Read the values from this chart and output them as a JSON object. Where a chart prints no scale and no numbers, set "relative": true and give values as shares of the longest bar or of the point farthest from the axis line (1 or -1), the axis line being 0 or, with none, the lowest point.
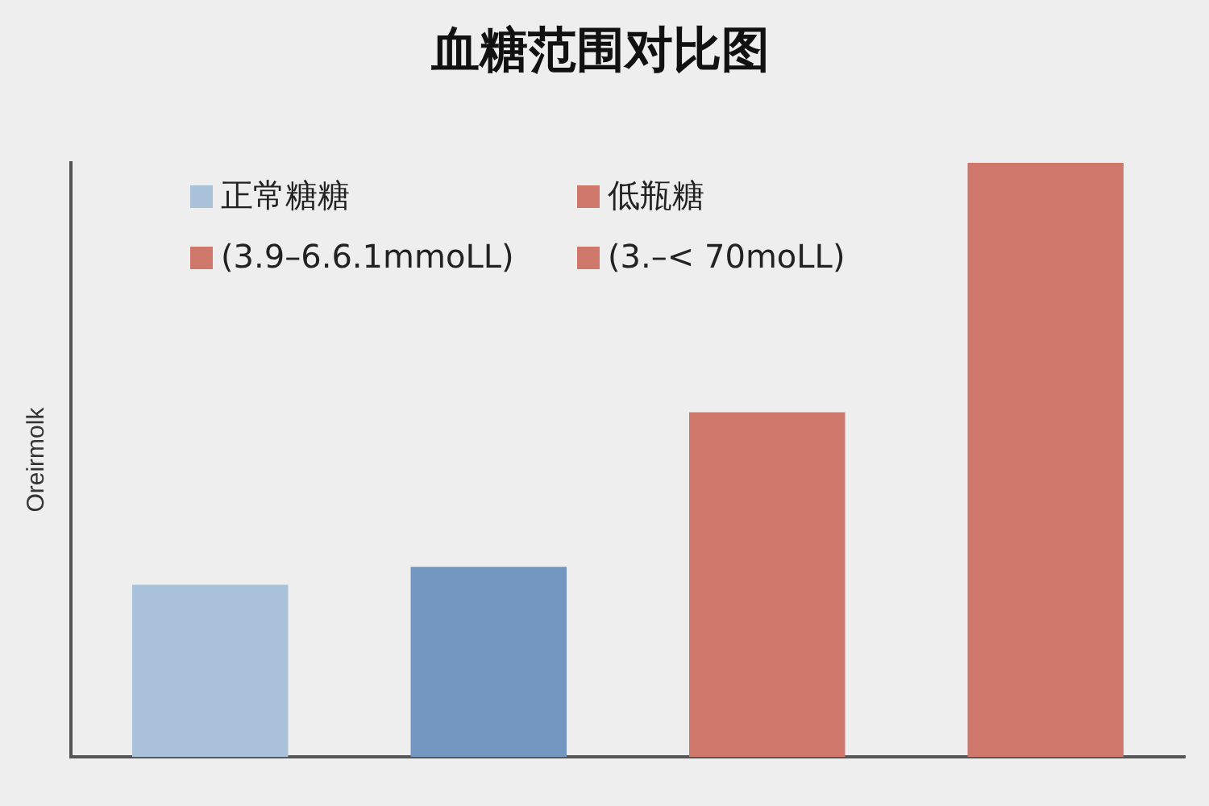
{
  "chart_data": {
    "type": "bar",
    "title": "血糖范围对比图",
    "ylabel": "Oreirmolk",
    "relative": true,
    "categories": [
      null,
      null,
      null,
      null
    ],
    "values": [
      0.29,
      0.32,
      0.58,
      1
    ],
    "colors": [
      "#a9c1d9",
      "#7396c0",
      "#d0776b",
      "#d0776b"
    ],
    "annotations": [
      "正常糖糖",
      "低瓶糖",
      "(3.9–6.6.1mmoLL)",
      "(3.–< 70moLL)"
    ],
    "grid": false
  }
}
